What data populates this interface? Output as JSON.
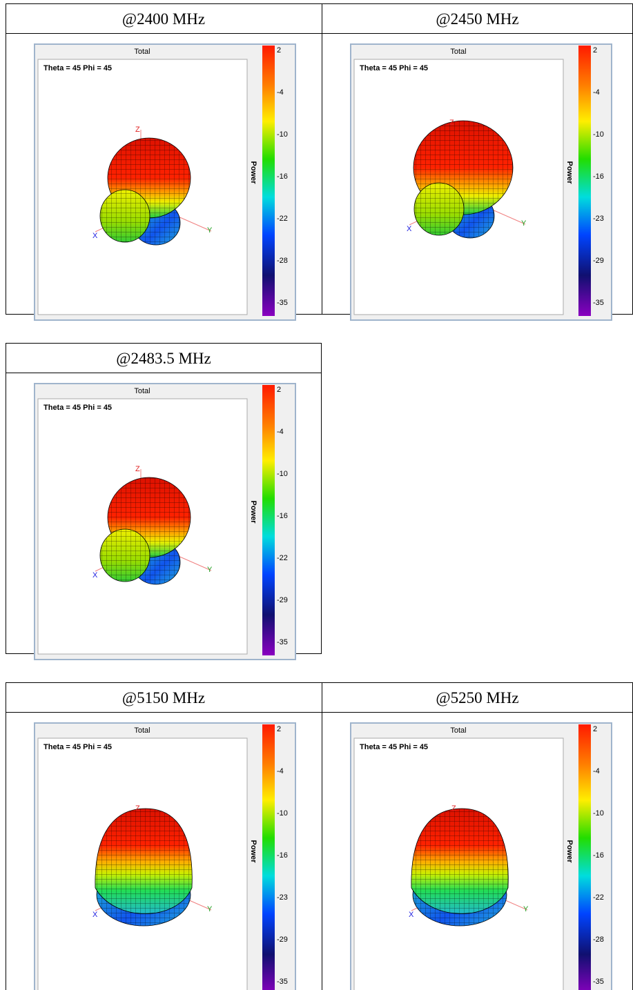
{
  "panels": [
    {
      "header": "@2400 MHz",
      "plot_title": "Total",
      "view": "Theta = 45 Phi = 45",
      "colorbar_label": "Power",
      "colorbar_ticks": [
        2,
        -4,
        -10,
        -16,
        -22,
        -28,
        -35
      ],
      "axis_labels": {
        "x": "X",
        "y": "Y",
        "z": "Z"
      }
    },
    {
      "header": "@2450 MHz",
      "plot_title": "Total",
      "view": "Theta = 45 Phi = 45",
      "colorbar_label": "Power",
      "colorbar_ticks": [
        2,
        -4,
        -10,
        -16,
        -23,
        -29,
        -35
      ],
      "axis_labels": {
        "x": "X",
        "y": "Y",
        "z": "Z"
      }
    },
    {
      "header": "@2483.5 MHz",
      "plot_title": "Total",
      "view": "Theta = 45 Phi = 45",
      "colorbar_label": "Power",
      "colorbar_ticks": [
        2,
        -4,
        -10,
        -16,
        -22,
        -29,
        -35
      ],
      "axis_labels": {
        "x": "X",
        "y": "Y",
        "z": "Z"
      }
    },
    {
      "header": "@5150 MHz",
      "plot_title": "Total",
      "view": "Theta = 45 Phi = 45",
      "colorbar_label": "Power",
      "colorbar_ticks": [
        2,
        -4,
        -10,
        -16,
        -23,
        -29,
        -35
      ],
      "axis_labels": {
        "x": "X",
        "y": "Y",
        "z": "Z"
      }
    },
    {
      "header": "@5250 MHz",
      "plot_title": "Total",
      "view": "Theta = 45 Phi = 45",
      "colorbar_label": "Power",
      "colorbar_ticks": [
        2,
        -4,
        -10,
        -16,
        -22,
        -28,
        -35
      ],
      "axis_labels": {
        "x": "X",
        "y": "Y",
        "z": "Z"
      }
    }
  ]
}
